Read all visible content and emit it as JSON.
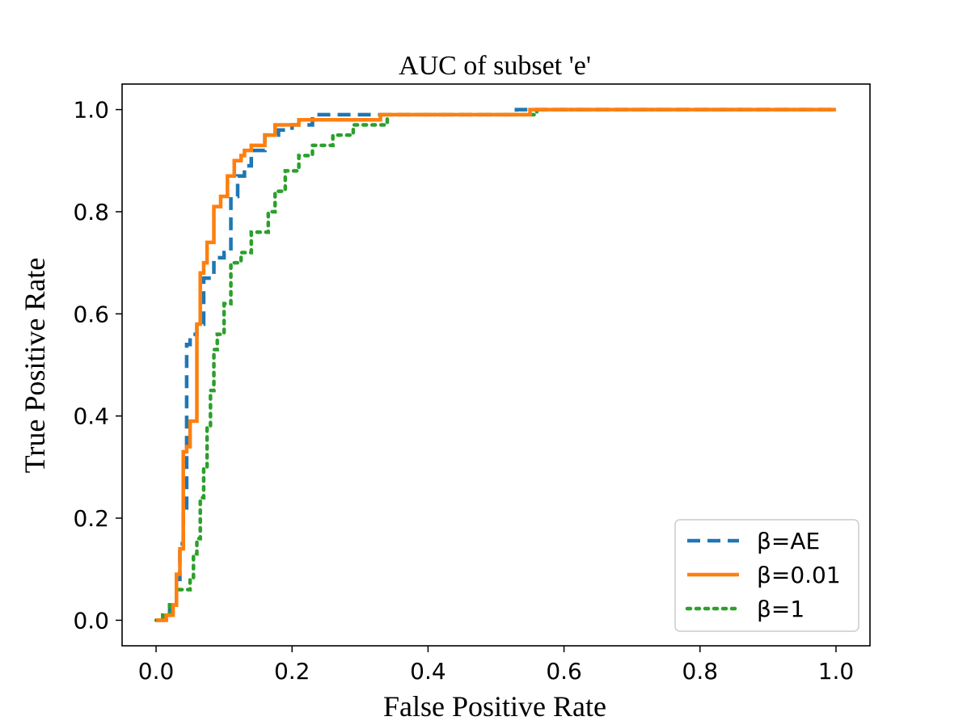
{
  "chart_data": {
    "type": "line",
    "title": "AUC of subset 'e'",
    "xlabel": "False Positive Rate",
    "ylabel": "True Positive Rate",
    "xlim": [
      -0.05,
      1.05
    ],
    "ylim": [
      -0.05,
      1.05
    ],
    "xticks": [
      0.0,
      0.2,
      0.4,
      0.6,
      0.8,
      1.0
    ],
    "yticks": [
      0.0,
      0.2,
      0.4,
      0.6,
      0.8,
      1.0
    ],
    "xtick_labels": [
      "0.0",
      "0.2",
      "0.4",
      "0.6",
      "0.8",
      "1.0"
    ],
    "ytick_labels": [
      "0.0",
      "0.2",
      "0.4",
      "0.6",
      "0.8",
      "1.0"
    ],
    "grid": false,
    "legend_position": "lower-right",
    "series": [
      {
        "name": "β=AE",
        "color": "#1f77b4",
        "style": "dashed",
        "x": [
          0.0,
          0.01,
          0.01,
          0.02,
          0.02,
          0.03,
          0.03,
          0.035,
          0.035,
          0.04,
          0.04,
          0.045,
          0.045,
          0.05,
          0.05,
          0.06,
          0.06,
          0.07,
          0.07,
          0.085,
          0.085,
          0.1,
          0.1,
          0.11,
          0.11,
          0.12,
          0.12,
          0.13,
          0.13,
          0.14,
          0.14,
          0.16,
          0.16,
          0.18,
          0.18,
          0.2,
          0.2,
          0.23,
          0.23,
          0.34,
          0.34,
          0.53,
          0.53,
          1.0
        ],
        "y": [
          0.0,
          0.0,
          0.01,
          0.01,
          0.03,
          0.03,
          0.08,
          0.08,
          0.15,
          0.15,
          0.22,
          0.22,
          0.54,
          0.54,
          0.56,
          0.56,
          0.58,
          0.58,
          0.67,
          0.67,
          0.71,
          0.71,
          0.72,
          0.72,
          0.83,
          0.83,
          0.87,
          0.87,
          0.89,
          0.89,
          0.92,
          0.92,
          0.95,
          0.95,
          0.96,
          0.96,
          0.97,
          0.97,
          0.99,
          0.99,
          0.99,
          0.99,
          1.0,
          1.0
        ]
      },
      {
        "name": "β=0.01",
        "color": "#ff7f0e",
        "style": "solid",
        "x": [
          0.0,
          0.015,
          0.015,
          0.025,
          0.025,
          0.03,
          0.03,
          0.035,
          0.035,
          0.04,
          0.04,
          0.045,
          0.045,
          0.05,
          0.05,
          0.06,
          0.06,
          0.065,
          0.065,
          0.07,
          0.07,
          0.075,
          0.075,
          0.085,
          0.085,
          0.095,
          0.095,
          0.105,
          0.105,
          0.115,
          0.115,
          0.125,
          0.125,
          0.13,
          0.13,
          0.14,
          0.14,
          0.16,
          0.16,
          0.175,
          0.175,
          0.21,
          0.21,
          0.33,
          0.33,
          0.55,
          0.55,
          1.0
        ],
        "y": [
          0.0,
          0.0,
          0.01,
          0.01,
          0.03,
          0.03,
          0.09,
          0.09,
          0.14,
          0.14,
          0.33,
          0.33,
          0.34,
          0.34,
          0.39,
          0.39,
          0.58,
          0.58,
          0.68,
          0.68,
          0.7,
          0.7,
          0.74,
          0.74,
          0.81,
          0.81,
          0.83,
          0.83,
          0.87,
          0.87,
          0.9,
          0.9,
          0.91,
          0.91,
          0.92,
          0.92,
          0.93,
          0.93,
          0.95,
          0.95,
          0.97,
          0.97,
          0.98,
          0.98,
          0.99,
          0.99,
          1.0,
          1.0
        ]
      },
      {
        "name": "β=1",
        "color": "#2ca02c",
        "style": "dotted",
        "x": [
          0.0,
          0.01,
          0.01,
          0.02,
          0.02,
          0.03,
          0.03,
          0.05,
          0.05,
          0.055,
          0.055,
          0.06,
          0.06,
          0.065,
          0.065,
          0.07,
          0.07,
          0.075,
          0.075,
          0.08,
          0.08,
          0.085,
          0.085,
          0.09,
          0.09,
          0.1,
          0.1,
          0.11,
          0.11,
          0.125,
          0.125,
          0.14,
          0.14,
          0.165,
          0.165,
          0.175,
          0.175,
          0.19,
          0.19,
          0.21,
          0.21,
          0.23,
          0.23,
          0.26,
          0.26,
          0.29,
          0.29,
          0.34,
          0.34,
          0.56,
          0.56,
          1.0
        ],
        "y": [
          0.0,
          0.0,
          0.01,
          0.01,
          0.03,
          0.03,
          0.06,
          0.06,
          0.08,
          0.08,
          0.13,
          0.13,
          0.16,
          0.16,
          0.24,
          0.24,
          0.3,
          0.3,
          0.38,
          0.38,
          0.45,
          0.45,
          0.53,
          0.53,
          0.56,
          0.56,
          0.62,
          0.62,
          0.7,
          0.7,
          0.72,
          0.72,
          0.76,
          0.76,
          0.8,
          0.8,
          0.84,
          0.84,
          0.88,
          0.88,
          0.91,
          0.91,
          0.93,
          0.93,
          0.95,
          0.95,
          0.97,
          0.97,
          0.99,
          0.99,
          1.0,
          1.0
        ]
      }
    ]
  }
}
